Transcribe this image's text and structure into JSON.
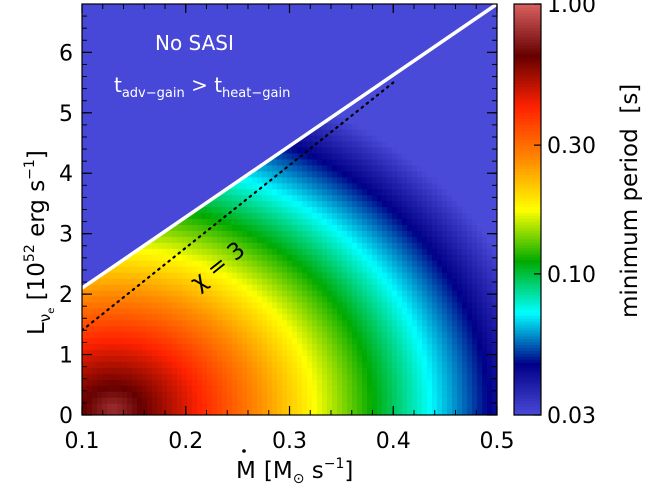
{
  "chart_data": {
    "type": "heatmap",
    "xlabel": {
      "base": "M",
      "bracket_open": "[M",
      "sun": "⊙",
      "unit": " s",
      "exp": "−1",
      "bracket_close": "]"
    },
    "ylabel": {
      "base": "L",
      "sub": "ν",
      "sub2": "e",
      "bracket_open": " [10",
      "exp1": "52",
      "unit": " erg s",
      "exp2": "−1",
      "bracket_close": "]"
    },
    "colorbar_label": "minimum period  [s]",
    "xlim": [
      0.1,
      0.5
    ],
    "ylim": [
      0,
      6.8
    ],
    "x_ticks": [
      0.1,
      0.2,
      0.3,
      0.4,
      0.5
    ],
    "x_tick_labels": [
      "0.1",
      "0.2",
      "0.3",
      "0.4",
      "0.5"
    ],
    "y_ticks": [
      0,
      1,
      2,
      3,
      4,
      5,
      6
    ],
    "y_tick_labels": [
      "0",
      "1",
      "2",
      "3",
      "4",
      "5",
      "6"
    ],
    "colorbar": {
      "scale": "log",
      "range": [
        0.03,
        1.0
      ],
      "tick_values": [
        0.03,
        0.1,
        0.3,
        1.0
      ],
      "tick_labels": [
        "0.03",
        "0.10",
        "0.30",
        "1.00"
      ],
      "colormap": [
        "#4a4ad8",
        "#000088",
        "#00ffff",
        "#00aa00",
        "#ffff00",
        "#ff8800",
        "#ff2200",
        "#660000",
        "#d86060"
      ]
    },
    "no_sasi_region": {
      "label": "No SASI",
      "condition": {
        "t1": "t",
        "t1_sub": "adv−gain",
        "op": " > ",
        "t2": "t",
        "t2_sub": "heat−gain"
      },
      "fill_color": "#4848d8"
    },
    "boundary_line": {
      "x": [
        0.1,
        0.5
      ],
      "y": [
        2.1,
        6.8
      ],
      "color": "#ffffff"
    },
    "chi_line": {
      "label": "χ = 3",
      "x": [
        0.1,
        0.4
      ],
      "y": [
        1.4,
        5.5
      ],
      "style": "dotted"
    },
    "minimum_period_model": {
      "peak_at": [
        0.13,
        0.1
      ],
      "peak_value": 0.8
    }
  }
}
